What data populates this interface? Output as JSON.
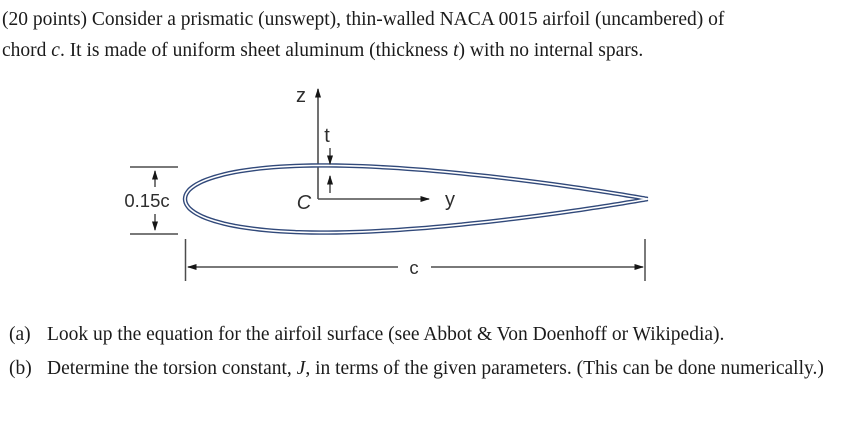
{
  "intro": {
    "line1": "(20 points) Consider a prismatic (unswept), thin-walled NACA 0015 airfoil (uncambered) of",
    "line2_pre": "chord ",
    "line2_var1": "c",
    "line2_mid": ". It is made of uniform sheet aluminum (thickness ",
    "line2_var2": "t",
    "line2_post": ") with no internal spars."
  },
  "items": {
    "a": {
      "label": "(a)",
      "text": "Look up the equation for the airfoil surface (see Abbot & Von Doenhoff or Wikipedia)."
    },
    "b": {
      "label": "(b)",
      "pre": "Determine the torsion constant, ",
      "var": "J",
      "post": ", in terms of the given parameters. (This can be done numerically.)"
    }
  },
  "diagram": {
    "z_axis_label": "z",
    "y_axis_label": "y",
    "origin_label": "C",
    "wall_thickness_label": "t",
    "max_thickness_label": "0.15c",
    "chord_label": "c",
    "outline_color": "#31497a"
  }
}
